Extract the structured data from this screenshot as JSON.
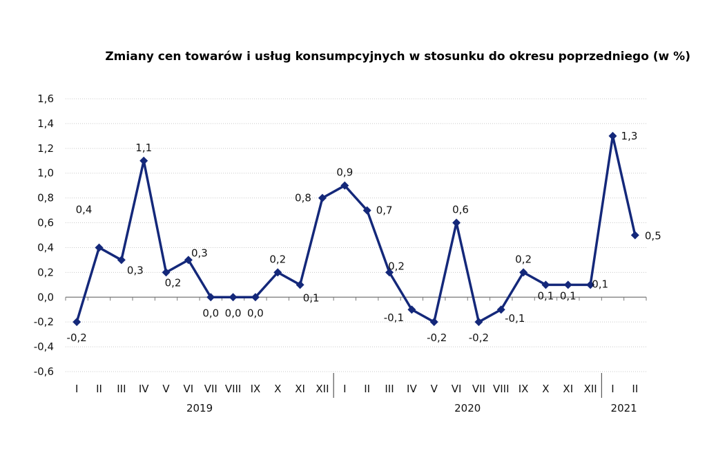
{
  "chart_data": {
    "type": "line",
    "title": "Zmiany cen towarów i usług konsumpcyjnych w stosunku do okresu poprzedniego (w %)",
    "xlabel": "",
    "ylabel": "",
    "ylim": [
      -0.6,
      1.6
    ],
    "y_ticks": [
      "-0,6",
      "-0,4",
      "-0,2",
      "0,0",
      "0,2",
      "0,4",
      "0,6",
      "0,8",
      "1,0",
      "1,2",
      "1,4",
      "1,6"
    ],
    "grid": true,
    "legend": "none",
    "color": "#14287a",
    "categories": [
      "I",
      "II",
      "III",
      "IV",
      "V",
      "VI",
      "VII",
      "VIII",
      "IX",
      "X",
      "XI",
      "XII",
      "I",
      "II",
      "III",
      "IV",
      "V",
      "VI",
      "VII",
      "VIII",
      "IX",
      "X",
      "XI",
      "XII",
      "I",
      "II"
    ],
    "years": [
      {
        "label": "2019",
        "start": 0,
        "count": 12
      },
      {
        "label": "2020",
        "start": 12,
        "count": 12
      },
      {
        "label": "2021",
        "start": 24,
        "count": 2
      }
    ],
    "series": [
      {
        "name": "Zmiany cen",
        "values": [
          -0.2,
          0.4,
          0.3,
          1.1,
          0.2,
          0.3,
          0.0,
          0.0,
          0.0,
          0.2,
          0.1,
          0.8,
          0.9,
          0.7,
          0.2,
          -0.1,
          -0.2,
          0.6,
          -0.2,
          -0.1,
          0.2,
          0.1,
          0.1,
          0.1,
          1.3,
          0.5
        ],
        "data_labels": [
          "-0,2",
          "0,4",
          "0,3",
          "1,1",
          "0,2",
          "0,3",
          "0,0",
          "0,0",
          "0,0",
          "0,2",
          "0,1",
          "0,8",
          "0,9",
          "0,7",
          "0,2",
          "-0,1",
          "-0,2",
          "0,6",
          "-0,2",
          "-0,1",
          "0,2",
          "0,1",
          "0,1",
          "0,1",
          "1,3",
          "0,5"
        ]
      }
    ]
  }
}
